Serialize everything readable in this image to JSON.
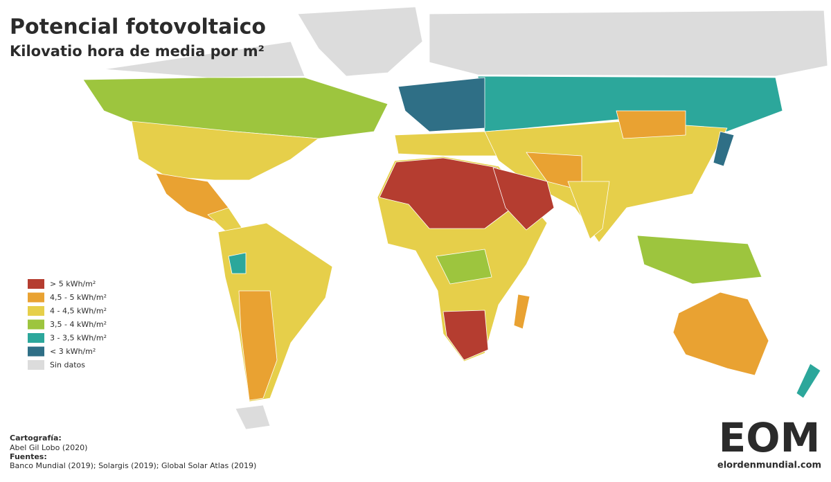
{
  "header": {
    "title": "Potencial fotovoltaico",
    "subtitle": "Kilovatio hora de media por m²"
  },
  "legend": {
    "items": [
      {
        "label": "> 5 kWh/m²",
        "color": "#b53d30"
      },
      {
        "label": "4,5 - 5 kWh/m²",
        "color": "#e9a232"
      },
      {
        "label": "4 - 4,5 kWh/m²",
        "color": "#e6cf4a"
      },
      {
        "label": "3,5 - 4 kWh/m²",
        "color": "#9dc53e"
      },
      {
        "label": "3 - 3,5 kWh/m²",
        "color": "#2ca79b"
      },
      {
        "label": "< 3 kWh/m²",
        "color": "#2f6f86"
      },
      {
        "label": "Sin datos",
        "color": "#dcdcdc"
      }
    ]
  },
  "credits": {
    "cartography_heading": "Cartografía:",
    "cartography": "Abel Gil Lobo (2020)",
    "sources_heading": "Fuentes:",
    "sources": "Banco Mundial (2019); Solargis (2019); Global Solar Atlas (2019)"
  },
  "logo": {
    "mark": "EOM",
    "url": "elordenmundial.com"
  }
}
